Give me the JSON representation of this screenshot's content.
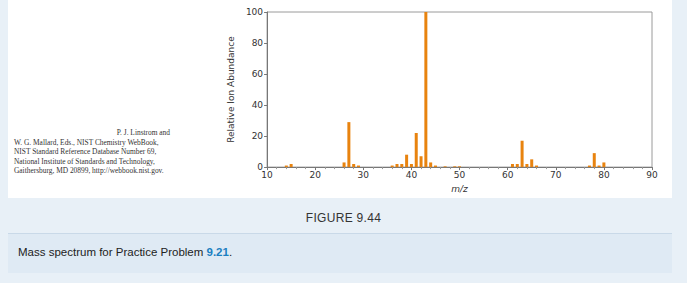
{
  "chart_data": {
    "type": "bar",
    "xlabel": "m/z",
    "ylabel": "Relative Ion Abundance",
    "x": [
      14,
      15,
      26,
      27,
      28,
      29,
      36,
      37,
      38,
      39,
      40,
      41,
      42,
      43,
      44,
      45,
      47,
      49,
      50,
      61,
      62,
      63,
      64,
      65,
      66,
      77,
      78,
      79,
      80
    ],
    "values": [
      1,
      2,
      3,
      29,
      2,
      1,
      1,
      2,
      2,
      8,
      2,
      22,
      7,
      100,
      3,
      1,
      0.5,
      0.5,
      0.5,
      2,
      2,
      17,
      2,
      5,
      1,
      1,
      9,
      1,
      3
    ],
    "color": "#e8830f",
    "xlim": [
      10,
      90
    ],
    "xticks": [
      10,
      20,
      30,
      40,
      50,
      60,
      70,
      80,
      90
    ],
    "ylim": [
      0,
      100
    ],
    "yticks": [
      0,
      20,
      40,
      60,
      80,
      100
    ],
    "grid": false
  },
  "credit": [
    "P. J. Linstrom and",
    "W. G. Mallard, Eds., NIST Chemistry WebBook,",
    "NIST Standard Reference Database Number 69,",
    "National Institute of Standards and Technology,",
    "Gaithersburg, MD 20899, http://webbook.nist.gov."
  ],
  "figure_label": "FIGURE 9.44",
  "caption": [
    "Mass spectrum for Practice Problem ",
    "9.21",
    "."
  ]
}
